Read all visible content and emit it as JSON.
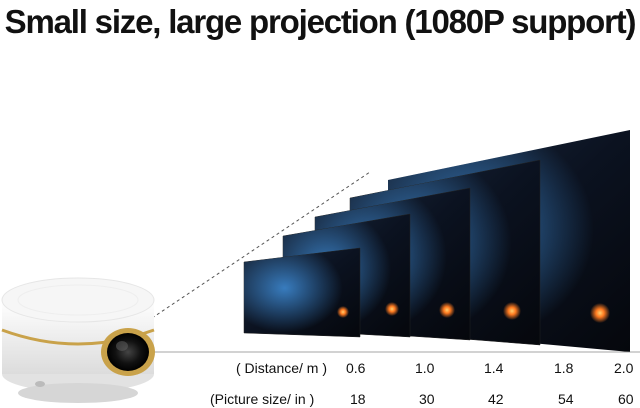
{
  "headline": "Small size, large projection (1080P support)",
  "distance_row": {
    "label": "( Distance/ m )",
    "values": [
      "0.6",
      "1.0",
      "1.4",
      "1.8",
      "2.0"
    ]
  },
  "picture_row": {
    "label": "(Picture size/ in )",
    "values": [
      "18",
      "30",
      "42",
      "54",
      "60"
    ]
  },
  "colors": {
    "projector_body": "#f4f4f4",
    "gold_ring": "#c9a24a",
    "screen_dark": "#0a0e18"
  }
}
